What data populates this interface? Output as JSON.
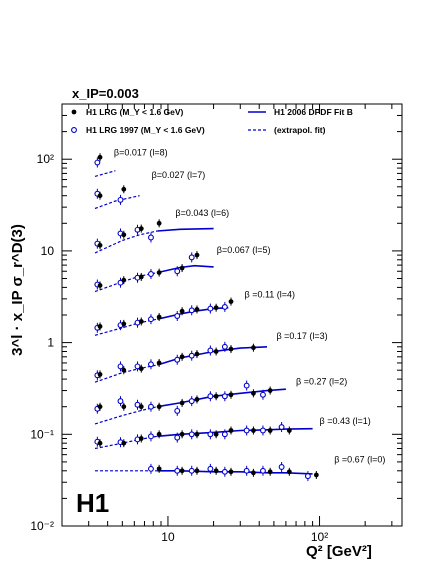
{
  "chart_data": {
    "type": "scatter",
    "top_label": "x_IP=0.003",
    "xlabel": "Q² [GeV²]",
    "ylabel": "3^l · x_IP σ_r^D(3)",
    "logo": "H1",
    "x_scale": "log",
    "y_scale": "log",
    "xlim": [
      2,
      350
    ],
    "ylim": [
      0.01,
      400
    ],
    "x_ticks": [
      {
        "value": 10,
        "label": "10"
      },
      {
        "value": 100,
        "label": "10²"
      }
    ],
    "y_ticks": [
      {
        "value": 0.01,
        "label": "10⁻²"
      },
      {
        "value": 0.1,
        "label": "10⁻¹"
      },
      {
        "value": 1,
        "label": "1"
      },
      {
        "value": 10,
        "label": "10"
      },
      {
        "value": 100,
        "label": "10²"
      }
    ],
    "legend": [
      {
        "marker": "filled-circle",
        "text": "H1 LRG (M_Y < 1.6 GeV)"
      },
      {
        "marker": "open-circle",
        "text": "H1 LRG 1997 (M_Y < 1.6 GeV)"
      },
      {
        "marker": "solid-line",
        "text": "H1 2006 DPDF Fit B"
      },
      {
        "marker": "dashed-line",
        "text": "(extrapol. fit)"
      }
    ],
    "series": [
      {
        "label": "β=0.017 (l=8)",
        "label_x": 4.4,
        "label_y": 110,
        "lrg_q2": [
          3.5
        ],
        "lrg_vals": [
          105
        ],
        "lrg97_q2": [
          3.5
        ],
        "lrg97_vals": [
          92
        ],
        "fit_solid_q2": [],
        "fit_solid": [],
        "fit_dash_q2": [
          3.3,
          4.5
        ],
        "fit_dash": [
          65,
          75
        ]
      },
      {
        "label": "β=0.027 (l=7)",
        "label_x": 7.8,
        "label_y": 62,
        "lrg_q2": [
          3.5,
          5.0
        ],
        "lrg_vals": [
          40,
          47
        ],
        "lrg97_q2": [
          3.5,
          5.0
        ],
        "lrg97_vals": [
          42,
          36
        ],
        "fit_solid_q2": [],
        "fit_solid": [],
        "fit_dash_q2": [
          3.3,
          4.5,
          6.5
        ],
        "fit_dash": [
          29,
          35,
          40
        ]
      },
      {
        "label": "β=0.043 (l=6)",
        "label_x": 11.2,
        "label_y": 24,
        "lrg_q2": [
          3.5,
          5.0,
          6.5,
          8.5
        ],
        "lrg_vals": [
          11.5,
          15,
          17.5,
          20
        ],
        "lrg97_q2": [
          3.5,
          5.0,
          6.5,
          8.0
        ],
        "lrg97_vals": [
          12,
          15.5,
          17,
          14
        ],
        "fit_solid_q2": [
          8.5,
          12,
          20
        ],
        "fit_solid": [
          16.5,
          17.2,
          17.5
        ],
        "fit_dash_q2": [
          3.3,
          5,
          6.5,
          8.5
        ],
        "fit_dash": [
          9.5,
          13,
          15,
          16.5
        ]
      },
      {
        "label": "β=0.067 (l=5)",
        "label_x": 21,
        "label_y": 9.5,
        "lrg_q2": [
          3.5,
          5.0,
          6.5,
          8.5,
          12,
          15
        ],
        "lrg_vals": [
          4.2,
          4.8,
          5.2,
          5.8,
          6.5,
          9.0
        ],
        "lrg97_q2": [
          3.5,
          5.0,
          6.5,
          8.0,
          12,
          15
        ],
        "lrg97_vals": [
          4.3,
          4.5,
          5.1,
          5.6,
          6.0,
          8.5
        ],
        "fit_solid_q2": [
          8.5,
          12,
          15,
          20
        ],
        "fit_solid": [
          5.8,
          6.6,
          6.9,
          6.7
        ],
        "fit_dash_q2": [
          3.3,
          5,
          6.5,
          8.5
        ],
        "fit_dash": [
          3.6,
          4.6,
          5.3,
          5.8
        ]
      },
      {
        "label": "β =0.11 (l=4)",
        "label_x": 32,
        "label_y": 3.1,
        "lrg_q2": [
          3.5,
          5.0,
          6.5,
          8.5,
          12,
          15,
          20,
          25
        ],
        "lrg_vals": [
          1.5,
          1.6,
          1.7,
          1.9,
          2.2,
          2.3,
          2.4,
          2.8
        ],
        "lrg97_q2": [
          3.5,
          5.0,
          6.5,
          8.0,
          12,
          15,
          20,
          25
        ],
        "lrg97_vals": [
          1.45,
          1.55,
          1.65,
          1.8,
          1.95,
          2.25,
          2.35,
          2.45
        ],
        "fit_solid_q2": [
          8.5,
          12,
          15,
          20,
          25
        ],
        "fit_solid": [
          1.8,
          2.05,
          2.2,
          2.35,
          2.4
        ],
        "fit_dash_q2": [
          3.3,
          5,
          6.5,
          8.5
        ],
        "fit_dash": [
          1.2,
          1.45,
          1.65,
          1.8
        ]
      },
      {
        "label": "β =0.17 (l=3)",
        "label_x": 52,
        "label_y": 1.1,
        "lrg_q2": [
          3.5,
          5.0,
          6.5,
          8.5,
          12,
          15,
          20,
          25,
          35
        ],
        "lrg_vals": [
          0.45,
          0.5,
          0.52,
          0.6,
          0.7,
          0.75,
          0.8,
          0.85,
          0.88
        ],
        "lrg97_q2": [
          3.5,
          5.0,
          6.5,
          8.0,
          12,
          15,
          20,
          25
        ],
        "lrg97_vals": [
          0.44,
          0.55,
          0.55,
          0.58,
          0.65,
          0.72,
          0.82,
          0.9
        ],
        "fit_solid_q2": [
          8.5,
          12,
          20,
          30,
          45
        ],
        "fit_solid": [
          0.57,
          0.68,
          0.8,
          0.87,
          0.9
        ],
        "fit_dash_q2": [
          3.3,
          5,
          6.5,
          8.5
        ],
        "fit_dash": [
          0.37,
          0.47,
          0.52,
          0.57
        ]
      },
      {
        "label": "β =0.27 (l=2)",
        "label_x": 70,
        "label_y": 0.35,
        "lrg_q2": [
          3.5,
          5.0,
          6.5,
          8.5,
          12,
          15,
          20,
          25,
          35,
          45
        ],
        "lrg_vals": [
          0.2,
          0.2,
          0.2,
          0.2,
          0.22,
          0.24,
          0.26,
          0.27,
          0.28,
          0.3
        ],
        "lrg97_q2": [
          3.5,
          5.0,
          6.5,
          8.0,
          12,
          15,
          20,
          25,
          35,
          45
        ],
        "lrg97_vals": [
          0.19,
          0.23,
          0.21,
          0.2,
          0.18,
          0.23,
          0.26,
          0.26,
          0.34,
          0.27
        ],
        "fit_solid_q2": [
          8.5,
          12,
          20,
          30,
          45,
          60
        ],
        "fit_solid": [
          0.2,
          0.22,
          0.26,
          0.28,
          0.3,
          0.31
        ],
        "fit_dash_q2": [
          3.3,
          5,
          6.5,
          8.5
        ],
        "fit_dash": [
          0.13,
          0.16,
          0.18,
          0.2
        ]
      },
      {
        "label": "β =0.43 (l=1)",
        "label_x": 100,
        "label_y": 0.13,
        "lrg_q2": [
          3.5,
          5.0,
          6.5,
          8.5,
          12,
          15,
          20,
          25,
          35,
          45,
          60
        ],
        "lrg_vals": [
          0.08,
          0.08,
          0.09,
          0.1,
          0.1,
          0.1,
          0.1,
          0.11,
          0.11,
          0.11,
          0.11
        ],
        "lrg97_q2": [
          3.5,
          5.0,
          6.5,
          8.0,
          12,
          15,
          20,
          25,
          35,
          45,
          60
        ],
        "lrg97_vals": [
          0.083,
          0.082,
          0.088,
          0.095,
          0.092,
          0.1,
          0.1,
          0.1,
          0.11,
          0.11,
          0.12
        ],
        "fit_solid_q2": [
          8.5,
          12,
          20,
          30,
          45,
          60,
          90
        ],
        "fit_solid": [
          0.095,
          0.1,
          0.105,
          0.11,
          0.112,
          0.114,
          0.115
        ],
        "fit_dash_q2": [
          3.3,
          5,
          6.5,
          8.5
        ],
        "fit_dash": [
          0.07,
          0.08,
          0.088,
          0.095
        ]
      },
      {
        "label": "β =0.67 (l=0)",
        "label_x": 125,
        "label_y": 0.049,
        "lrg_q2": [
          8.5,
          12,
          15,
          20,
          25,
          35,
          45,
          60,
          90
        ],
        "lrg_vals": [
          0.042,
          0.04,
          0.04,
          0.04,
          0.039,
          0.038,
          0.039,
          0.039,
          0.036
        ],
        "lrg97_q2": [
          8.0,
          12,
          15,
          20,
          25,
          35,
          45,
          60,
          90
        ],
        "lrg97_vals": [
          0.042,
          0.04,
          0.04,
          0.042,
          0.039,
          0.04,
          0.04,
          0.044,
          0.035
        ],
        "fit_solid_q2": [
          8.5,
          12,
          20,
          30,
          45,
          60,
          90
        ],
        "fit_solid": [
          0.04,
          0.04,
          0.039,
          0.039,
          0.038,
          0.038,
          0.037
        ],
        "fit_dash_q2": [
          3.3,
          5,
          6.5,
          8.5
        ],
        "fit_dash": [
          0.04,
          0.04,
          0.04,
          0.04
        ]
      }
    ],
    "colors": {
      "lrg": "#000000",
      "lrg97": "#0000cc",
      "fit": "#0000cc"
    }
  }
}
